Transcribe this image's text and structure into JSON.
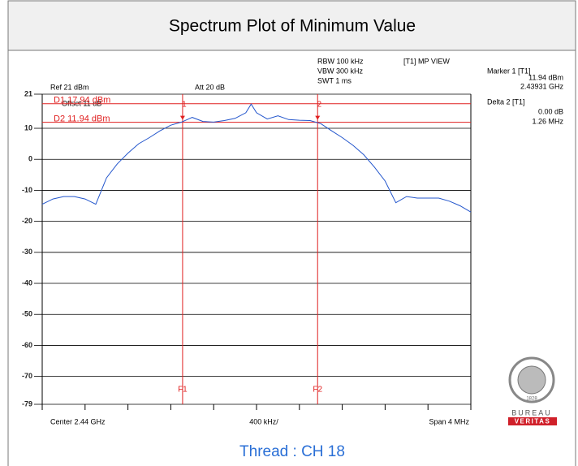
{
  "chart_data": {
    "type": "line",
    "title": "Spectrum Plot of Minimum Value",
    "caption": "Thread : CH 18",
    "x": [
      2.438,
      2.4381,
      2.4382,
      2.4383,
      2.4384,
      2.4385,
      2.4386,
      2.4387,
      2.4388,
      2.4389,
      2.439,
      2.4391,
      2.4392,
      2.4393,
      2.4394,
      2.4395,
      2.4396,
      2.4397,
      2.4398,
      2.4399,
      2.43995,
      2.44,
      2.4401,
      2.4402,
      2.4403,
      2.4404,
      2.4405,
      2.4406,
      2.4407,
      2.4408,
      2.4409,
      2.441,
      2.4411,
      2.4412,
      2.4413,
      2.4414,
      2.4415,
      2.4416,
      2.4417,
      2.4418,
      2.4419,
      2.442
    ],
    "series": [
      {
        "color": "#2255cc",
        "values": [
          -14.5,
          -12.8,
          -12,
          -12,
          -12.8,
          -14.5,
          -6,
          -1.5,
          2,
          5,
          7,
          9.2,
          11,
          12,
          13.5,
          12.2,
          12,
          12.5,
          13.2,
          15,
          17.8,
          15,
          13,
          14,
          12.8,
          12.6,
          12.5,
          11.5,
          9.2,
          7,
          4.5,
          1.5,
          -2.5,
          -7,
          -14,
          -12,
          -12.5,
          -12.5,
          -12.5,
          -13.5,
          -15,
          -17
        ]
      }
    ],
    "xlim": [
      2.438,
      2.442
    ],
    "ylim": [
      -79,
      21
    ],
    "yticks": [
      21,
      10,
      0,
      -10,
      -20,
      -30,
      -40,
      -50,
      -60,
      -70,
      -79
    ],
    "grid": true,
    "display_lines": [
      {
        "label": "D1 17.94 dBm",
        "value": 17.94
      },
      {
        "label": "D2 11.94 dBm",
        "value": 11.94
      }
    ],
    "frequency_lines": [
      {
        "label": "F1",
        "value": 2.43931
      },
      {
        "label": "F2",
        "value": 2.44057
      }
    ],
    "markers": [
      {
        "label": "1",
        "x": 2.43931,
        "y": 11.94
      },
      {
        "label": "2",
        "x": 2.44057,
        "y": 11.94
      }
    ],
    "settings_text": [
      "RBW 100 kHz",
      "VBW 300 kHz",
      "SWT 1 ms",
      "[T1] MP VIEW",
      "Ref 21 dBm",
      "Att  20 dB",
      "Offset 11 dB"
    ],
    "marker_readout": [
      "Marker 1 [T1]",
      "11.94 dBm",
      "2.43931 GHz",
      "Delta 2 [T1]",
      "0.00 dB",
      "1.26 MHz"
    ],
    "x_axis_text": [
      "Center 2.44 GHz",
      "400 kHz/",
      "Span 4 MHz"
    ],
    "logo": {
      "top": "BUREAU",
      "bottom": "VERITAS",
      "year": "1828"
    }
  }
}
